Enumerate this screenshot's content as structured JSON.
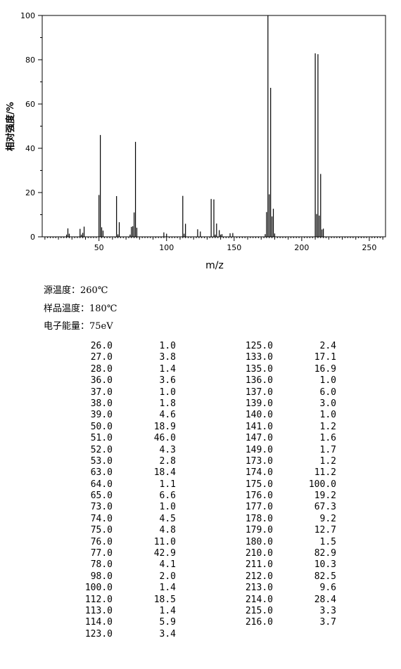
{
  "chart_data": {
    "type": "bar",
    "xlabel": "m/z",
    "ylabel": "相对强度/%",
    "xlim": [
      8,
      262
    ],
    "ylim": [
      0,
      100
    ],
    "xticks": [
      50,
      100,
      150,
      200,
      250
    ],
    "yticks": [
      0,
      20,
      40,
      60,
      80,
      100
    ],
    "grid": false,
    "peaks": [
      {
        "mz": 26.0,
        "i": 1.0
      },
      {
        "mz": 27.0,
        "i": 3.8
      },
      {
        "mz": 28.0,
        "i": 1.4
      },
      {
        "mz": 36.0,
        "i": 3.6
      },
      {
        "mz": 37.0,
        "i": 1.0
      },
      {
        "mz": 38.0,
        "i": 1.8
      },
      {
        "mz": 39.0,
        "i": 4.6
      },
      {
        "mz": 50.0,
        "i": 18.9
      },
      {
        "mz": 51.0,
        "i": 46.0
      },
      {
        "mz": 52.0,
        "i": 4.3
      },
      {
        "mz": 53.0,
        "i": 2.8
      },
      {
        "mz": 63.0,
        "i": 18.4
      },
      {
        "mz": 64.0,
        "i": 1.1
      },
      {
        "mz": 65.0,
        "i": 6.6
      },
      {
        "mz": 73.0,
        "i": 1.0
      },
      {
        "mz": 74.0,
        "i": 4.5
      },
      {
        "mz": 75.0,
        "i": 4.8
      },
      {
        "mz": 76.0,
        "i": 11.0
      },
      {
        "mz": 77.0,
        "i": 42.9
      },
      {
        "mz": 78.0,
        "i": 4.1
      },
      {
        "mz": 98.0,
        "i": 2.0
      },
      {
        "mz": 100.0,
        "i": 1.4
      },
      {
        "mz": 112.0,
        "i": 18.5
      },
      {
        "mz": 113.0,
        "i": 1.4
      },
      {
        "mz": 114.0,
        "i": 5.9
      },
      {
        "mz": 123.0,
        "i": 3.4
      },
      {
        "mz": 125.0,
        "i": 2.4
      },
      {
        "mz": 133.0,
        "i": 17.1
      },
      {
        "mz": 135.0,
        "i": 16.9
      },
      {
        "mz": 136.0,
        "i": 1.0
      },
      {
        "mz": 137.0,
        "i": 6.0
      },
      {
        "mz": 139.0,
        "i": 3.0
      },
      {
        "mz": 140.0,
        "i": 1.0
      },
      {
        "mz": 141.0,
        "i": 1.2
      },
      {
        "mz": 147.0,
        "i": 1.6
      },
      {
        "mz": 149.0,
        "i": 1.7
      },
      {
        "mz": 173.0,
        "i": 1.2
      },
      {
        "mz": 174.0,
        "i": 11.2
      },
      {
        "mz": 175.0,
        "i": 100.0
      },
      {
        "mz": 176.0,
        "i": 19.2
      },
      {
        "mz": 177.0,
        "i": 67.3
      },
      {
        "mz": 178.0,
        "i": 9.2
      },
      {
        "mz": 179.0,
        "i": 12.7
      },
      {
        "mz": 180.0,
        "i": 1.5
      },
      {
        "mz": 210.0,
        "i": 82.9
      },
      {
        "mz": 211.0,
        "i": 10.3
      },
      {
        "mz": 212.0,
        "i": 82.5
      },
      {
        "mz": 213.0,
        "i": 9.6
      },
      {
        "mz": 214.0,
        "i": 28.4
      },
      {
        "mz": 215.0,
        "i": 3.3
      },
      {
        "mz": 216.0,
        "i": 3.7
      }
    ]
  },
  "conditions": {
    "source_temp": "源温度：260℃",
    "sample_temp": "样品温度：180℃",
    "electron_energy": "电子能量：75eV"
  },
  "table": {
    "left": [
      [
        "26.0",
        "1.0"
      ],
      [
        "27.0",
        "3.8"
      ],
      [
        "28.0",
        "1.4"
      ],
      [
        "36.0",
        "3.6"
      ],
      [
        "37.0",
        "1.0"
      ],
      [
        "38.0",
        "1.8"
      ],
      [
        "39.0",
        "4.6"
      ],
      [
        "50.0",
        "18.9"
      ],
      [
        "51.0",
        "46.0"
      ],
      [
        "52.0",
        "4.3"
      ],
      [
        "53.0",
        "2.8"
      ],
      [
        "63.0",
        "18.4"
      ],
      [
        "64.0",
        "1.1"
      ],
      [
        "65.0",
        "6.6"
      ],
      [
        "73.0",
        "1.0"
      ],
      [
        "74.0",
        "4.5"
      ],
      [
        "75.0",
        "4.8"
      ],
      [
        "76.0",
        "11.0"
      ],
      [
        "77.0",
        "42.9"
      ],
      [
        "78.0",
        "4.1"
      ],
      [
        "98.0",
        "2.0"
      ],
      [
        "100.0",
        "1.4"
      ],
      [
        "112.0",
        "18.5"
      ],
      [
        "113.0",
        "1.4"
      ],
      [
        "114.0",
        "5.9"
      ],
      [
        "123.0",
        "3.4"
      ]
    ],
    "right": [
      [
        "125.0",
        "2.4"
      ],
      [
        "133.0",
        "17.1"
      ],
      [
        "135.0",
        "16.9"
      ],
      [
        "136.0",
        "1.0"
      ],
      [
        "137.0",
        "6.0"
      ],
      [
        "139.0",
        "3.0"
      ],
      [
        "140.0",
        "1.0"
      ],
      [
        "141.0",
        "1.2"
      ],
      [
        "147.0",
        "1.6"
      ],
      [
        "149.0",
        "1.7"
      ],
      [
        "173.0",
        "1.2"
      ],
      [
        "174.0",
        "11.2"
      ],
      [
        "175.0",
        "100.0"
      ],
      [
        "176.0",
        "19.2"
      ],
      [
        "177.0",
        "67.3"
      ],
      [
        "178.0",
        "9.2"
      ],
      [
        "179.0",
        "12.7"
      ],
      [
        "180.0",
        "1.5"
      ],
      [
        "210.0",
        "82.9"
      ],
      [
        "211.0",
        "10.3"
      ],
      [
        "212.0",
        "82.5"
      ],
      [
        "213.0",
        "9.6"
      ],
      [
        "214.0",
        "28.4"
      ],
      [
        "215.0",
        "3.3"
      ],
      [
        "216.0",
        "3.7"
      ]
    ]
  }
}
